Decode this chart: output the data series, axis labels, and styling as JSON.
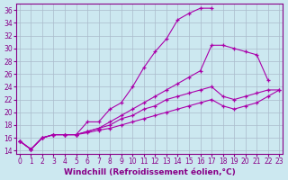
{
  "background_color": "#cce8f0",
  "line_color": "#aa00aa",
  "grid_color": "#aabbcc",
  "xlabel": "Windchill (Refroidissement éolien,°C)",
  "xlabel_fontsize": 6.5,
  "tick_fontsize": 5.5,
  "ylim": [
    13.5,
    37
  ],
  "xlim": [
    -0.3,
    23.3
  ],
  "yticks": [
    14,
    16,
    18,
    20,
    22,
    24,
    26,
    28,
    30,
    32,
    34,
    36
  ],
  "xticks": [
    0,
    1,
    2,
    3,
    4,
    5,
    6,
    7,
    8,
    9,
    10,
    11,
    12,
    13,
    14,
    15,
    16,
    17,
    18,
    19,
    20,
    21,
    22,
    23
  ],
  "series1_x": [
    0,
    1,
    2,
    3,
    4,
    5,
    6,
    7,
    8,
    9,
    10,
    11,
    12,
    13,
    14,
    15,
    16,
    17
  ],
  "series1_y": [
    15.5,
    14.2,
    16.0,
    16.5,
    16.5,
    16.5,
    18.5,
    18.5,
    20.5,
    21.5,
    24.0,
    27.0,
    29.5,
    31.5,
    34.5,
    35.5,
    36.3,
    36.3
  ],
  "series2_x": [
    0,
    1,
    2,
    3,
    4,
    5,
    6,
    7,
    8,
    9,
    10,
    11,
    12,
    13,
    14,
    15,
    16,
    17,
    18,
    19,
    20,
    21,
    22
  ],
  "series2_y": [
    15.5,
    14.2,
    16.0,
    16.5,
    16.5,
    16.5,
    17.0,
    17.5,
    18.5,
    19.5,
    20.5,
    21.5,
    22.5,
    23.5,
    24.5,
    25.5,
    26.5,
    30.5,
    30.5,
    30.0,
    29.5,
    29.0,
    25.0
  ],
  "series3_x": [
    0,
    1,
    2,
    3,
    4,
    5,
    6,
    7,
    8,
    9,
    10,
    11,
    12,
    13,
    14,
    15,
    16,
    17,
    18,
    19,
    20,
    21,
    22,
    23
  ],
  "series3_y": [
    15.5,
    14.2,
    16.0,
    16.5,
    16.5,
    16.5,
    17.0,
    17.5,
    18.0,
    19.0,
    19.5,
    20.5,
    21.0,
    22.0,
    22.5,
    23.0,
    23.5,
    24.0,
    22.5,
    22.0,
    22.5,
    23.0,
    23.5,
    23.5
  ],
  "series4_x": [
    0,
    1,
    2,
    3,
    4,
    5,
    6,
    7,
    8,
    9,
    10,
    11,
    12,
    13,
    14,
    15,
    16,
    17,
    18,
    19,
    20,
    21,
    22,
    23
  ],
  "series4_y": [
    15.5,
    14.2,
    16.0,
    16.5,
    16.5,
    16.5,
    16.8,
    17.2,
    17.5,
    18.0,
    18.5,
    19.0,
    19.5,
    20.0,
    20.5,
    21.0,
    21.5,
    22.0,
    21.0,
    20.5,
    21.0,
    21.5,
    22.5,
    23.5
  ]
}
